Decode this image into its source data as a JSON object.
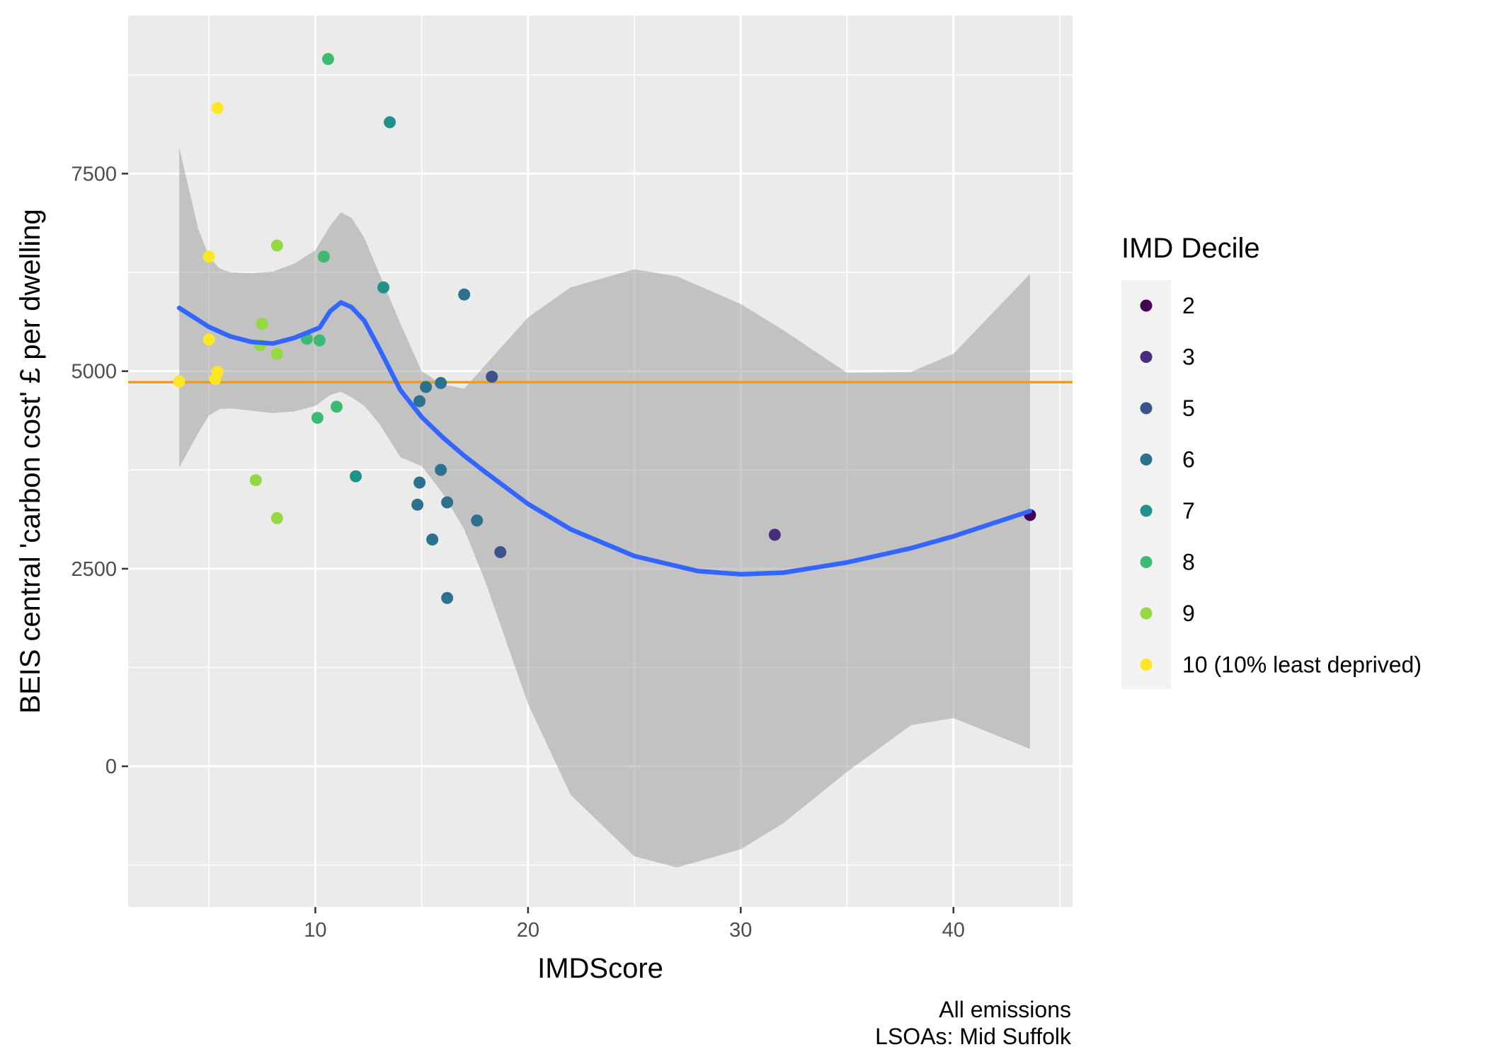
{
  "chart_data": {
    "type": "scatter",
    "xlabel": "IMDScore",
    "ylabel": "BEIS central 'carbon cost' £ per dwelling",
    "xlim": [
      1.2,
      45.6
    ],
    "ylim": [
      -1780,
      9500
    ],
    "x_ticks": [
      10,
      20,
      30,
      40
    ],
    "y_ticks": [
      0,
      2500,
      5000,
      7500
    ],
    "x_tick_labels": [
      "10",
      "20",
      "30",
      "40"
    ],
    "y_tick_labels": [
      "0",
      "2500",
      "5000",
      "7500"
    ],
    "grid": true,
    "legend_position": "right",
    "legend": {
      "title": "IMD Decile",
      "entries": [
        {
          "label": "2",
          "color": "#440154"
        },
        {
          "label": "3",
          "color": "#472D7B"
        },
        {
          "label": "5",
          "color": "#3B528B"
        },
        {
          "label": "6",
          "color": "#2C728E"
        },
        {
          "label": "7",
          "color": "#21918C"
        },
        {
          "label": "8",
          "color": "#3CBB75"
        },
        {
          "label": "9",
          "color": "#95D840"
        },
        {
          "label": "10 (10% least deprived)",
          "color": "#FDE725"
        }
      ]
    },
    "reference_line": {
      "y": 4860,
      "color": "#F39C12"
    },
    "points": [
      {
        "x": 3.6,
        "y": 4870,
        "decile": "10"
      },
      {
        "x": 5.4,
        "y": 8330,
        "decile": "10"
      },
      {
        "x": 5.0,
        "y": 5400,
        "decile": "10"
      },
      {
        "x": 5.4,
        "y": 4990,
        "decile": "10"
      },
      {
        "x": 5.3,
        "y": 4900,
        "decile": "10"
      },
      {
        "x": 5.0,
        "y": 6450,
        "decile": "10"
      },
      {
        "x": 8.2,
        "y": 6590,
        "decile": "9"
      },
      {
        "x": 7.5,
        "y": 5600,
        "decile": "9"
      },
      {
        "x": 7.4,
        "y": 5330,
        "decile": "9"
      },
      {
        "x": 8.2,
        "y": 5220,
        "decile": "9"
      },
      {
        "x": 7.2,
        "y": 3620,
        "decile": "9"
      },
      {
        "x": 8.2,
        "y": 3140,
        "decile": "9"
      },
      {
        "x": 10.6,
        "y": 8950,
        "decile": "8"
      },
      {
        "x": 10.4,
        "y": 6450,
        "decile": "8"
      },
      {
        "x": 9.6,
        "y": 5410,
        "decile": "8"
      },
      {
        "x": 10.2,
        "y": 5390,
        "decile": "8"
      },
      {
        "x": 11.0,
        "y": 4550,
        "decile": "8"
      },
      {
        "x": 10.1,
        "y": 4410,
        "decile": "8"
      },
      {
        "x": 13.5,
        "y": 8150,
        "decile": "7"
      },
      {
        "x": 13.2,
        "y": 6060,
        "decile": "7"
      },
      {
        "x": 11.9,
        "y": 3670,
        "decile": "7"
      },
      {
        "x": 17.0,
        "y": 5970,
        "decile": "6"
      },
      {
        "x": 15.2,
        "y": 4800,
        "decile": "6"
      },
      {
        "x": 15.9,
        "y": 4850,
        "decile": "6"
      },
      {
        "x": 14.9,
        "y": 4620,
        "decile": "6"
      },
      {
        "x": 15.9,
        "y": 3750,
        "decile": "6"
      },
      {
        "x": 14.9,
        "y": 3590,
        "decile": "6"
      },
      {
        "x": 16.2,
        "y": 3340,
        "decile": "6"
      },
      {
        "x": 14.8,
        "y": 3310,
        "decile": "6"
      },
      {
        "x": 17.6,
        "y": 3110,
        "decile": "6"
      },
      {
        "x": 15.5,
        "y": 2870,
        "decile": "6"
      },
      {
        "x": 16.2,
        "y": 2130,
        "decile": "6"
      },
      {
        "x": 18.3,
        "y": 4930,
        "decile": "5"
      },
      {
        "x": 18.7,
        "y": 2710,
        "decile": "5"
      },
      {
        "x": 31.6,
        "y": 2930,
        "decile": "3"
      },
      {
        "x": 43.6,
        "y": 3180,
        "decile": "2"
      }
    ],
    "smooth": {
      "color": "#3366FF",
      "x": [
        3.6,
        5.0,
        6.0,
        7.0,
        8.0,
        9.0,
        10.2,
        10.7,
        11.2,
        11.7,
        12.3,
        13.0,
        14.0,
        15.0,
        16.0,
        17.0,
        18.0,
        20.0,
        22.0,
        25.0,
        28.0,
        30.0,
        32.0,
        35.0,
        38.0,
        40.0,
        43.6
      ],
      "y": [
        5800,
        5560,
        5440,
        5370,
        5350,
        5420,
        5550,
        5760,
        5870,
        5810,
        5640,
        5290,
        4760,
        4420,
        4160,
        3930,
        3720,
        3320,
        3000,
        2660,
        2470,
        2430,
        2450,
        2580,
        2760,
        2910,
        3230
      ]
    },
    "ribbon": {
      "color": "#999999",
      "opacity": 0.5,
      "x": [
        3.6,
        4.5,
        5.0,
        5.5,
        6.0,
        7.0,
        8.0,
        9.0,
        10.0,
        10.7,
        11.2,
        11.7,
        12.3,
        13.0,
        14.0,
        15.0,
        16.0,
        17.0,
        18.0,
        20.0,
        22.0,
        25.0,
        27.0,
        30.0,
        32.0,
        35.0,
        38.0,
        40.0,
        43.6
      ],
      "upper": [
        7830,
        6800,
        6450,
        6300,
        6250,
        6240,
        6260,
        6360,
        6530,
        6840,
        7010,
        6940,
        6690,
        6240,
        5600,
        5000,
        4830,
        4780,
        5080,
        5680,
        6060,
        6290,
        6200,
        5850,
        5520,
        4980,
        4990,
        5220,
        6230
      ],
      "lower": [
        3780,
        4220,
        4440,
        4520,
        4530,
        4500,
        4470,
        4490,
        4560,
        4700,
        4740,
        4670,
        4560,
        4340,
        3910,
        3800,
        3450,
        3000,
        2330,
        790,
        -360,
        -1140,
        -1280,
        -1050,
        -720,
        -70,
        520,
        610,
        220
      ]
    },
    "caption": [
      "All emissions",
      "LSOAs: Mid Suffolk"
    ]
  }
}
